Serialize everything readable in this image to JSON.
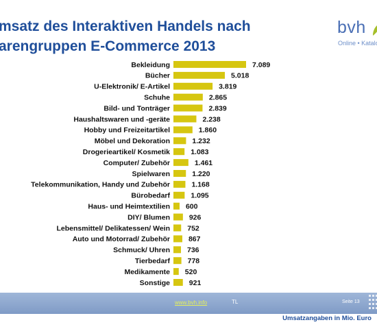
{
  "title_line1": "msatz des Interaktiven Handels nach",
  "title_line2": "arengruppen  E-Commerce 2013",
  "logo": {
    "word": "bvh",
    "tagline": "Online • Katalog"
  },
  "footer": {
    "link": "www.bvh.info",
    "initials": "TL",
    "page": "Seite 13"
  },
  "colors": {
    "bar": "#d6c610",
    "title": "#1f4e9a",
    "footer": "#8aa4cd"
  },
  "chart_data": {
    "type": "bar",
    "orientation": "horizontal",
    "title": "",
    "xlabel": "",
    "ylabel": "",
    "unit_note": "Umsatzangaben in Mio. Euro",
    "xlim": [
      0,
      7089
    ],
    "categories": [
      "Bekleidung",
      "Bücher",
      "U-Elektronik/ E-Artikel",
      "Schuhe",
      "Bild- und Tonträger",
      "Haushaltswaren und -geräte",
      "Hobby und Freizeitartikel",
      "Möbel und Dekoration",
      "Drogerieartikel/ Kosmetik",
      "Computer/ Zubehör",
      "Spielwaren",
      "Telekommunikation, Handy und Zubehör",
      "Bürobedarf",
      "Haus- und Heimtextilien",
      "DIY/ Blumen",
      "Lebensmittel/ Delikatessen/ Wein",
      "Auto und Motorrad/ Zubehör",
      "Schmuck/ Uhren",
      "Tierbedarf",
      "Medikamente",
      "Sonstige"
    ],
    "values": [
      7089,
      5018,
      3819,
      2865,
      2839,
      2238,
      1860,
      1232,
      1083,
      1461,
      1220,
      1168,
      1095,
      600,
      926,
      752,
      867,
      736,
      778,
      520,
      921
    ],
    "value_labels": [
      "7.089",
      "5.018",
      "3.819",
      "2.865",
      "2.839",
      "2.238",
      "1.860",
      "1.232",
      "1.083",
      "1.461",
      "1.220",
      "1.168",
      "1.095",
      "600",
      "926",
      "752",
      "867",
      "736",
      "778",
      "520",
      "921"
    ],
    "legend": "none",
    "grid": false
  }
}
